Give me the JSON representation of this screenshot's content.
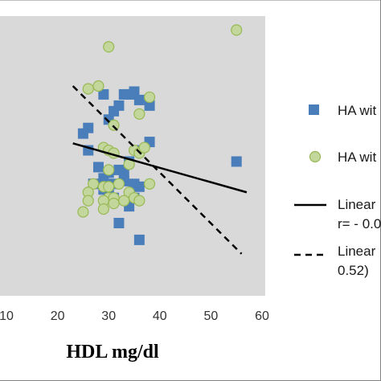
{
  "chart_data": {
    "type": "scatter",
    "xlabel": "HDL  mg/dl",
    "ylabel": "",
    "title": "",
    "x_ticks": [
      "10",
      "20",
      "30",
      "40",
      "50",
      "60"
    ],
    "xlim": [
      10,
      60
    ],
    "ylim": [
      0,
      100
    ],
    "grid": false,
    "legend_placement": "right",
    "colors": {
      "plot_bg": "#d9d9d9",
      "series_square": "#4a7ebb",
      "series_circle_fill": "#c3d69b",
      "series_circle_stroke": "#98b954",
      "line": "#000000"
    },
    "series": [
      {
        "name": "HA wit",
        "marker": "square",
        "points": [
          [
            25,
            58
          ],
          [
            26,
            60
          ],
          [
            26,
            52
          ],
          [
            29,
            72
          ],
          [
            30,
            63
          ],
          [
            31,
            66
          ],
          [
            32,
            68
          ],
          [
            33,
            72
          ],
          [
            34,
            72
          ],
          [
            35,
            73
          ],
          [
            36,
            70
          ],
          [
            38,
            68
          ],
          [
            38,
            55
          ],
          [
            36,
            52
          ],
          [
            34,
            48
          ],
          [
            33,
            44
          ],
          [
            32,
            45
          ],
          [
            30,
            44
          ],
          [
            29,
            42
          ],
          [
            28,
            46
          ],
          [
            27,
            40
          ],
          [
            29,
            38
          ],
          [
            30,
            37
          ],
          [
            31,
            40
          ],
          [
            33,
            41
          ],
          [
            35,
            40
          ],
          [
            36,
            39
          ],
          [
            35,
            35
          ],
          [
            34,
            32
          ],
          [
            31,
            35
          ],
          [
            30,
            38
          ],
          [
            32,
            26
          ],
          [
            36,
            20
          ],
          [
            55,
            48
          ]
        ]
      },
      {
        "name": "HA wit",
        "marker": "circle",
        "points": [
          [
            30,
            89
          ],
          [
            55,
            95
          ],
          [
            26,
            74
          ],
          [
            28,
            75
          ],
          [
            38,
            71
          ],
          [
            36,
            65
          ],
          [
            31,
            61
          ],
          [
            29,
            53
          ],
          [
            30,
            52
          ],
          [
            31,
            51
          ],
          [
            35,
            52
          ],
          [
            36,
            51
          ],
          [
            37,
            53
          ],
          [
            34,
            47
          ],
          [
            30,
            45
          ],
          [
            27,
            40
          ],
          [
            29,
            39
          ],
          [
            38,
            40
          ],
          [
            32,
            40
          ],
          [
            34,
            37
          ],
          [
            26,
            37
          ],
          [
            30,
            35
          ],
          [
            29,
            34
          ],
          [
            31,
            35
          ],
          [
            33,
            34
          ],
          [
            35,
            35
          ],
          [
            36,
            34
          ],
          [
            26,
            34
          ],
          [
            29,
            31
          ],
          [
            25,
            30
          ],
          [
            31,
            33
          ],
          [
            30,
            39
          ]
        ]
      }
    ],
    "lines": [
      {
        "name": "Linear",
        "name_line2": "r= - 0.0",
        "style": "solid",
        "from": [
          23,
          54.5
        ],
        "to": [
          57,
          37
        ]
      },
      {
        "name": "Linear",
        "name_line2": "0.52)",
        "style": "dashed",
        "from": [
          23,
          75
        ],
        "to": [
          56,
          15
        ]
      }
    ]
  }
}
